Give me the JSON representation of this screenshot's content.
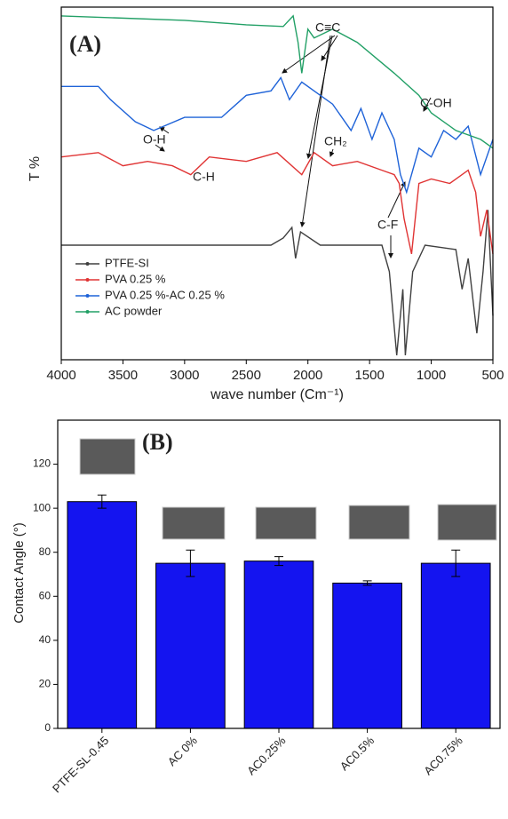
{
  "chart_data": [
    {
      "type": "line",
      "title": "(A)",
      "x_label": "wave number (Cm⁻¹)",
      "y_label": "T %",
      "xlim": [
        4000,
        500
      ],
      "xticks": [
        4000,
        3500,
        3000,
        2500,
        2000,
        1500,
        1000,
        500
      ],
      "ylim": [
        0,
        400
      ],
      "annotations": [
        "C≡C",
        "C-OH",
        "O-H",
        "C-H",
        "CH₂",
        "C-F"
      ],
      "series": [
        {
          "name": "PTFE-SI",
          "color": "#404040",
          "x": [
            4000,
            2300,
            2200,
            2130,
            2100,
            2060,
            1900,
            1400,
            1340,
            1280,
            1230,
            1210,
            1150,
            1050,
            800,
            750,
            700,
            630,
            580,
            540,
            500
          ],
          "values": [
            130,
            130,
            138,
            150,
            115,
            145,
            130,
            130,
            100,
            5,
            80,
            5,
            100,
            130,
            125,
            80,
            115,
            30,
            100,
            170,
            50
          ]
        },
        {
          "name": "PVA 0.25 %",
          "color": "#e03434",
          "x": [
            4000,
            3700,
            3500,
            3300,
            3100,
            2950,
            2800,
            2500,
            2250,
            2050,
            1950,
            1800,
            1600,
            1400,
            1300,
            1260,
            1220,
            1160,
            1100,
            1000,
            850,
            700,
            640,
            600,
            550,
            500
          ],
          "values": [
            230,
            235,
            220,
            225,
            220,
            210,
            230,
            225,
            235,
            210,
            235,
            220,
            225,
            215,
            210,
            200,
            160,
            120,
            200,
            205,
            200,
            215,
            190,
            140,
            170,
            120
          ]
        },
        {
          "name": "PVA 0.25 %-AC 0.25 %",
          "color": "#1f63d8",
          "x": [
            4000,
            3700,
            3600,
            3400,
            3250,
            3000,
            2700,
            2500,
            2300,
            2220,
            2150,
            2050,
            1900,
            1800,
            1650,
            1570,
            1480,
            1400,
            1300,
            1250,
            1200,
            1100,
            1000,
            900,
            800,
            700,
            600,
            500
          ],
          "values": [
            310,
            310,
            295,
            270,
            260,
            275,
            275,
            300,
            305,
            320,
            295,
            315,
            300,
            290,
            260,
            285,
            250,
            280,
            250,
            210,
            190,
            240,
            230,
            260,
            250,
            265,
            210,
            250
          ]
        },
        {
          "name": "AC powder",
          "color": "#22a066",
          "x": [
            4000,
            3000,
            2500,
            2200,
            2120,
            2080,
            2050,
            2000,
            1950,
            1800,
            1600,
            1300,
            1100,
            1000,
            800,
            600,
            500
          ],
          "values": [
            390,
            385,
            380,
            378,
            390,
            360,
            325,
            375,
            365,
            375,
            360,
            325,
            300,
            280,
            260,
            250,
            240
          ]
        }
      ]
    },
    {
      "type": "bar",
      "title": "(B)",
      "y_label": "Contact Angle (°)",
      "color": "#1414f0",
      "categories": [
        "PTFE-SL-0.45",
        "AC 0%",
        "AC0.25%",
        "AC0.5%",
        "AC0.75%"
      ],
      "values": [
        103,
        75,
        76,
        66,
        75
      ],
      "errors": [
        3,
        6,
        2,
        1,
        6
      ],
      "ylim": [
        0,
        140
      ],
      "yticks": [
        0,
        20,
        40,
        60,
        80,
        100,
        120
      ]
    }
  ]
}
